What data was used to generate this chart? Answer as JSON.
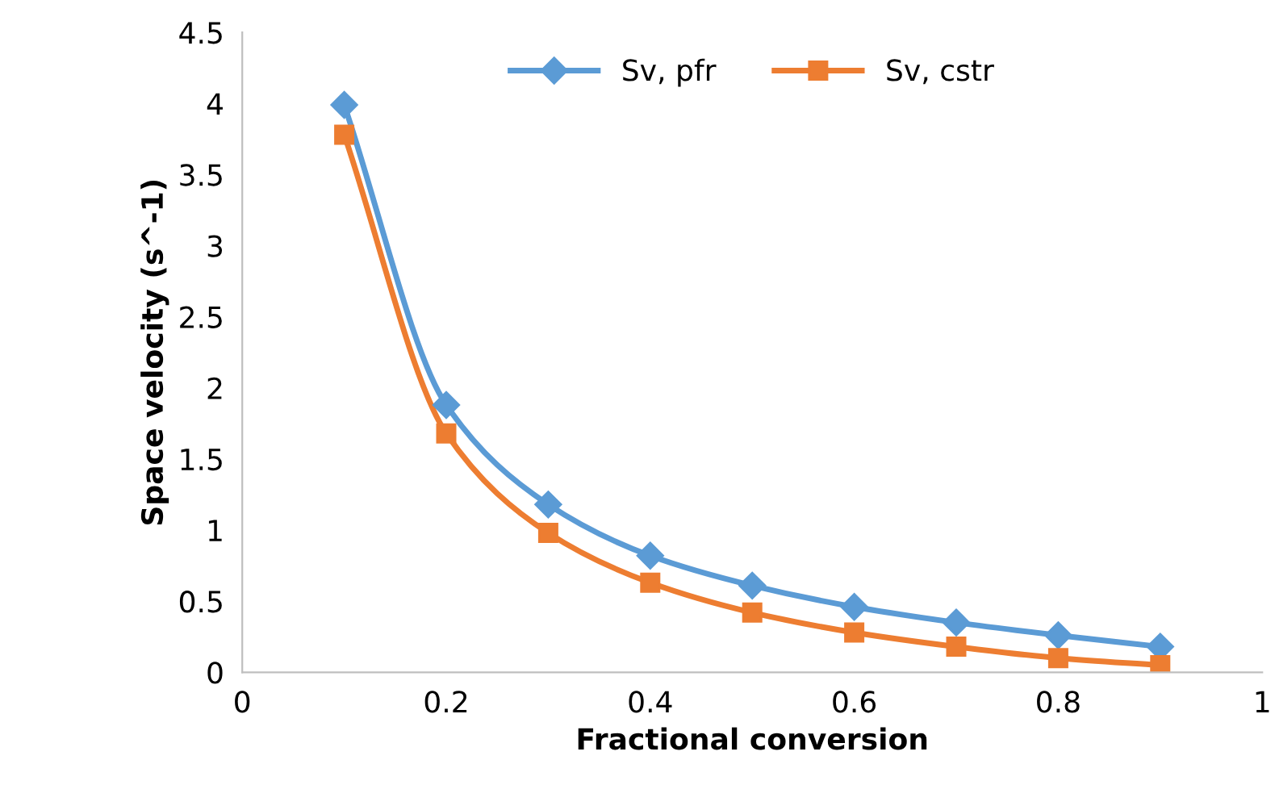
{
  "chart_data": {
    "type": "line",
    "xlabel": "Fractional conversion",
    "ylabel": "Space velocity (s^-1)",
    "x": [
      0.1,
      0.2,
      0.3,
      0.4,
      0.5,
      0.6,
      0.7,
      0.8,
      0.9
    ],
    "series": [
      {
        "name": "Sv, pfr",
        "color": "#5b9bd5",
        "marker": "diamond",
        "values": [
          3.99,
          1.88,
          1.18,
          0.82,
          0.61,
          0.46,
          0.35,
          0.26,
          0.18
        ]
      },
      {
        "name": "Sv, cstr",
        "color": "#ed7d31",
        "marker": "square",
        "values": [
          3.78,
          1.68,
          0.98,
          0.63,
          0.42,
          0.28,
          0.18,
          0.1,
          0.05
        ]
      }
    ],
    "xlim": [
      0,
      1
    ],
    "xticks": [
      0,
      0.2,
      0.4,
      0.6,
      0.8,
      1
    ],
    "ylim": [
      0,
      4.5
    ],
    "yticks": [
      0,
      0.5,
      1,
      1.5,
      2,
      2.5,
      3,
      3.5,
      4,
      4.5
    ],
    "grid": false,
    "legend": "top",
    "line_style": "solid"
  }
}
